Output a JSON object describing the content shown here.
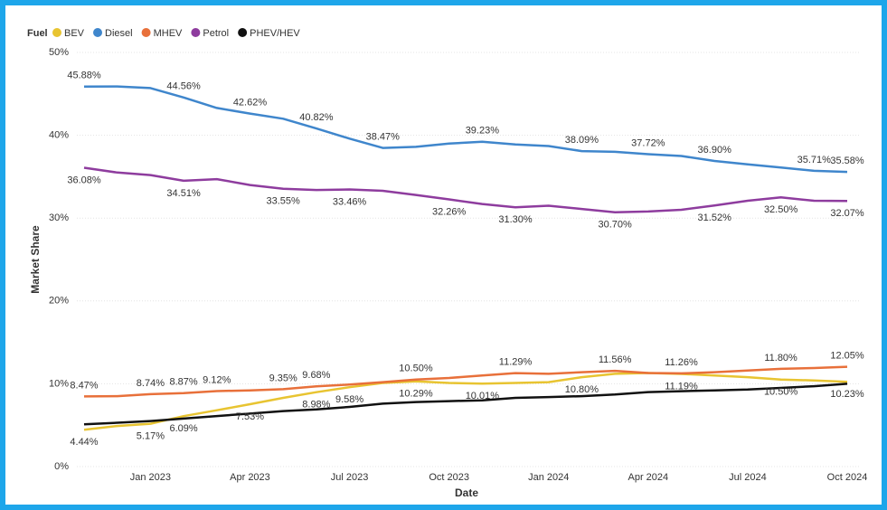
{
  "chart_data": {
    "type": "line",
    "legend_title": "Fuel",
    "xlabel": "Date",
    "ylabel": "Market Share",
    "legend": "top-left",
    "grid": true,
    "x": [
      "2022-11",
      "2022-12",
      "2023-01",
      "2023-02",
      "2023-03",
      "2023-04",
      "2023-05",
      "2023-06",
      "2023-07",
      "2023-08",
      "2023-09",
      "2023-10",
      "2023-11",
      "2023-12",
      "2024-01",
      "2024-02",
      "2024-03",
      "2024-04",
      "2024-05",
      "2024-06",
      "2024-07",
      "2024-08",
      "2024-09",
      "2024-10"
    ],
    "xlim": [
      "2022-11",
      "2024-10"
    ],
    "xticks": [
      {
        "value": "2023-01",
        "label": "Jan 2023"
      },
      {
        "value": "2023-04",
        "label": "Apr 2023"
      },
      {
        "value": "2023-07",
        "label": "Jul 2023"
      },
      {
        "value": "2023-10",
        "label": "Oct 2023"
      },
      {
        "value": "2024-01",
        "label": "Jan 2024"
      },
      {
        "value": "2024-04",
        "label": "Apr 2024"
      },
      {
        "value": "2024-07",
        "label": "Jul 2024"
      },
      {
        "value": "2024-10",
        "label": "Oct 2024"
      }
    ],
    "ylim": [
      0,
      50
    ],
    "yticks": [
      {
        "value": 0,
        "label": "0%"
      },
      {
        "value": 10,
        "label": "10%"
      },
      {
        "value": 20,
        "label": "20%"
      },
      {
        "value": 30,
        "label": "30%"
      },
      {
        "value": 40,
        "label": "40%"
      },
      {
        "value": 50,
        "label": "50%"
      }
    ],
    "series": [
      {
        "name": "BEV",
        "color": "#e8c431",
        "values": [
          4.44,
          4.9,
          5.17,
          6.09,
          6.8,
          7.53,
          8.3,
          8.98,
          9.58,
          10.1,
          10.29,
          10.1,
          10.01,
          10.1,
          10.2,
          10.8,
          11.2,
          11.3,
          11.19,
          11.0,
          10.8,
          10.5,
          10.4,
          10.23
        ],
        "value_labels": [
          "4.44%",
          null,
          "5.17%",
          "6.09%",
          null,
          "7.53%",
          null,
          "8.98%",
          "9.58%",
          null,
          "10.29%",
          null,
          "10.01%",
          null,
          null,
          "10.80%",
          null,
          null,
          "11.19%",
          null,
          null,
          "10.50%",
          null,
          "10.23%"
        ]
      },
      {
        "name": "Diesel",
        "color": "#3f86cc",
        "values": [
          45.88,
          45.9,
          45.7,
          44.56,
          43.3,
          42.62,
          42.0,
          40.82,
          39.6,
          38.47,
          38.6,
          39.0,
          39.23,
          38.9,
          38.7,
          38.09,
          38.0,
          37.72,
          37.5,
          36.9,
          36.5,
          36.1,
          35.71,
          35.58
        ],
        "value_labels": [
          "45.88%",
          null,
          null,
          "44.56%",
          null,
          "42.62%",
          null,
          "40.82%",
          null,
          "38.47%",
          null,
          null,
          "39.23%",
          null,
          null,
          "38.09%",
          null,
          "37.72%",
          null,
          "36.90%",
          null,
          null,
          "35.71%",
          "35.58%"
        ]
      },
      {
        "name": "MHEV",
        "color": "#e8703a",
        "values": [
          8.47,
          8.5,
          8.74,
          8.87,
          9.12,
          9.2,
          9.35,
          9.68,
          9.9,
          10.2,
          10.5,
          10.7,
          11.0,
          11.29,
          11.2,
          11.4,
          11.56,
          11.3,
          11.26,
          11.4,
          11.6,
          11.8,
          11.9,
          12.05
        ],
        "value_labels": [
          "8.47%",
          null,
          "8.74%",
          "8.87%",
          "9.12%",
          null,
          "9.35%",
          "9.68%",
          null,
          null,
          "10.50%",
          null,
          null,
          "11.29%",
          null,
          null,
          "11.56%",
          null,
          "11.26%",
          null,
          null,
          "11.80%",
          null,
          "12.05%"
        ]
      },
      {
        "name": "Petrol",
        "color": "#8e3c9e",
        "values": [
          36.08,
          35.5,
          35.2,
          34.51,
          34.7,
          34.0,
          33.55,
          33.4,
          33.46,
          33.3,
          32.8,
          32.26,
          31.7,
          31.3,
          31.5,
          31.1,
          30.7,
          30.8,
          31.0,
          31.52,
          32.1,
          32.5,
          32.1,
          32.07
        ],
        "value_labels": [
          "36.08%",
          null,
          null,
          "34.51%",
          null,
          null,
          "33.55%",
          null,
          "33.46%",
          null,
          null,
          "32.26%",
          null,
          "31.30%",
          null,
          null,
          "30.70%",
          null,
          null,
          "31.52%",
          null,
          "32.50%",
          null,
          "32.07%"
        ]
      },
      {
        "name": "PHEV/HEV",
        "color": "#111111",
        "values": [
          5.1,
          5.3,
          5.5,
          5.8,
          6.1,
          6.4,
          6.7,
          6.9,
          7.2,
          7.6,
          7.8,
          7.9,
          8.0,
          8.3,
          8.4,
          8.5,
          8.7,
          9.0,
          9.1,
          9.2,
          9.3,
          9.5,
          9.7,
          10.0
        ]
      }
    ]
  }
}
